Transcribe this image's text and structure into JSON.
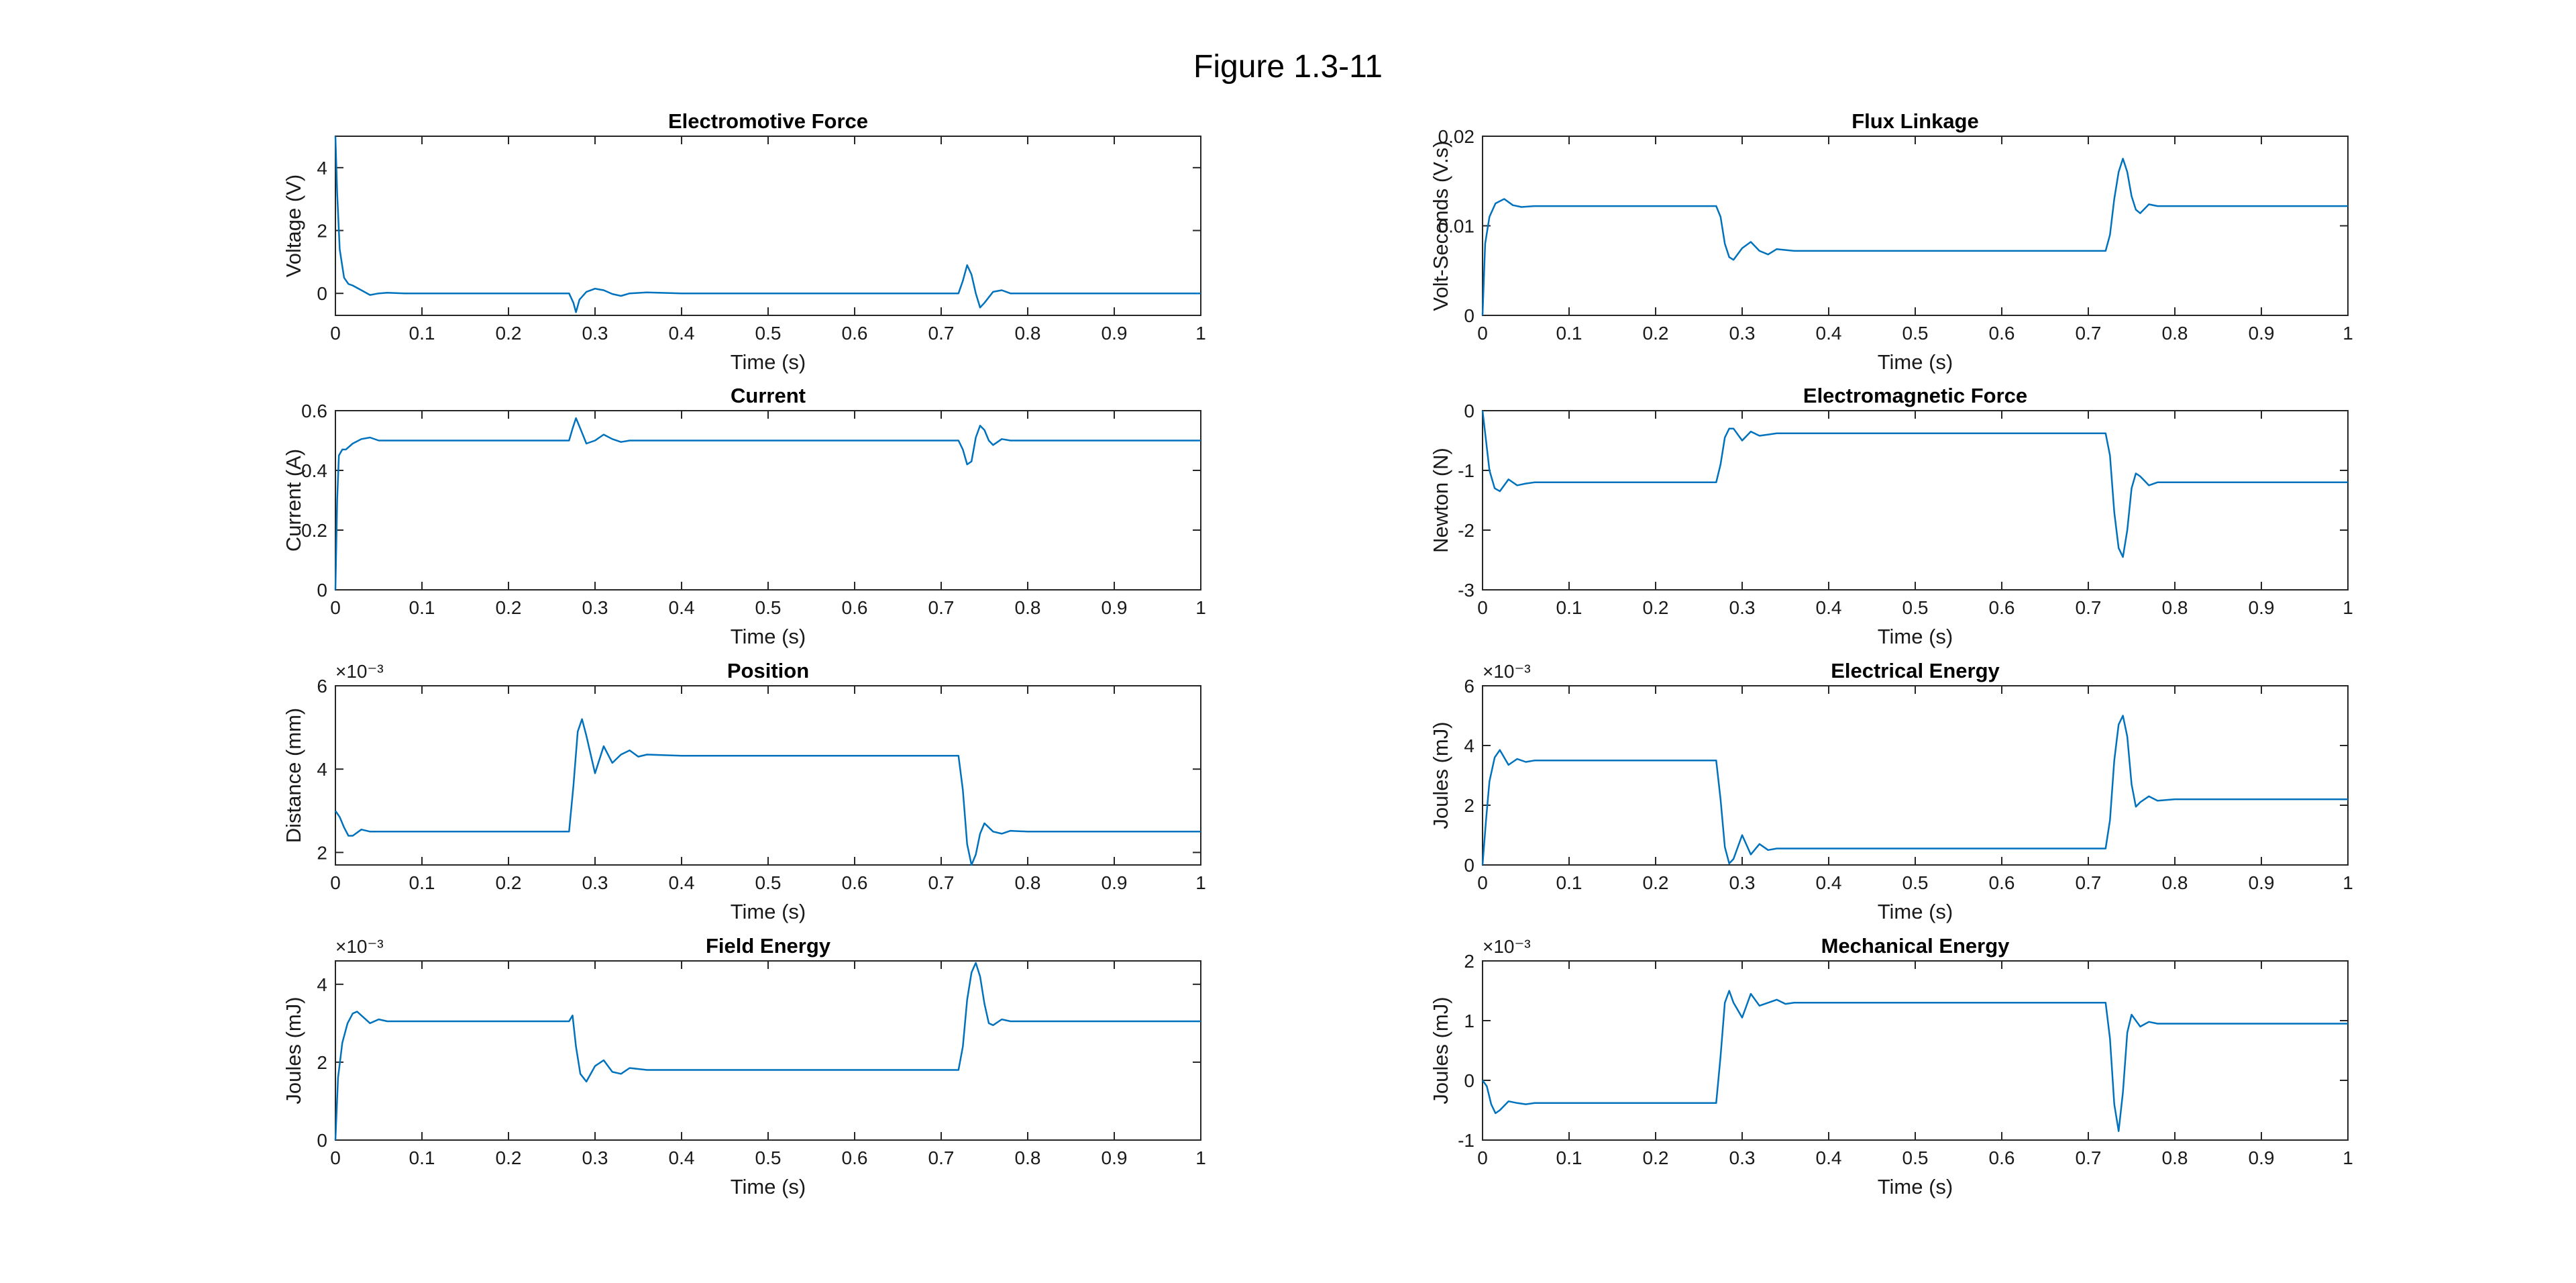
{
  "figure": {
    "title": "Figure 1.3-11",
    "line_color": "#0072BD"
  },
  "chart_data": [
    {
      "type": "line",
      "title": "Electromotive Force",
      "xlabel": "Time (s)",
      "ylabel": "Voltage (V)",
      "xlim": [
        0,
        1
      ],
      "ylim": [
        -0.7,
        5
      ],
      "xticks": [
        "0",
        "0.1",
        "0.2",
        "0.3",
        "0.4",
        "0.5",
        "0.6",
        "0.7",
        "0.8",
        "0.9",
        "1"
      ],
      "yticks": [
        "0",
        "2",
        "4"
      ],
      "y_exponent": "",
      "grid": false,
      "series": [
        {
          "x": [
            0,
            0.002,
            0.005,
            0.01,
            0.015,
            0.02,
            0.03,
            0.04,
            0.05,
            0.06,
            0.08,
            0.1,
            0.2,
            0.27,
            0.275,
            0.278,
            0.282,
            0.29,
            0.3,
            0.31,
            0.32,
            0.33,
            0.34,
            0.36,
            0.4,
            0.5,
            0.6,
            0.72,
            0.725,
            0.73,
            0.735,
            0.74,
            0.745,
            0.75,
            0.76,
            0.77,
            0.78,
            0.8,
            0.85,
            1
          ],
          "y": [
            5,
            3.2,
            1.4,
            0.5,
            0.3,
            0.25,
            0.1,
            -0.05,
            0,
            0.02,
            0,
            0,
            0,
            0,
            -0.3,
            -0.6,
            -0.2,
            0.05,
            0.15,
            0.1,
            -0.02,
            -0.08,
            0,
            0.03,
            0,
            0,
            0,
            0,
            0.4,
            0.9,
            0.6,
            0,
            -0.45,
            -0.3,
            0.05,
            0.1,
            0,
            0,
            0,
            0
          ]
        }
      ]
    },
    {
      "type": "line",
      "title": "Flux Linkage",
      "xlabel": "Time (s)",
      "ylabel": "Volt-Seconds (V.s)",
      "xlim": [
        0,
        1
      ],
      "ylim": [
        0,
        0.02
      ],
      "xticks": [
        "0",
        "0.1",
        "0.2",
        "0.3",
        "0.4",
        "0.5",
        "0.6",
        "0.7",
        "0.8",
        "0.9",
        "1"
      ],
      "yticks": [
        "0",
        "0.01",
        "0.02"
      ],
      "y_exponent": "",
      "grid": false,
      "series": [
        {
          "x": [
            0,
            0.003,
            0.008,
            0.015,
            0.025,
            0.035,
            0.045,
            0.06,
            0.08,
            0.1,
            0.2,
            0.27,
            0.275,
            0.28,
            0.285,
            0.29,
            0.3,
            0.31,
            0.32,
            0.33,
            0.34,
            0.36,
            0.4,
            0.5,
            0.6,
            0.7,
            0.72,
            0.725,
            0.73,
            0.735,
            0.74,
            0.745,
            0.75,
            0.755,
            0.76,
            0.77,
            0.78,
            0.8,
            0.85,
            1
          ],
          "y": [
            0,
            0.008,
            0.011,
            0.0125,
            0.013,
            0.0123,
            0.0121,
            0.0122,
            0.0122,
            0.0122,
            0.0122,
            0.0122,
            0.011,
            0.008,
            0.0065,
            0.0062,
            0.0075,
            0.0082,
            0.0072,
            0.0068,
            0.0074,
            0.0072,
            0.0072,
            0.0072,
            0.0072,
            0.0072,
            0.0072,
            0.009,
            0.013,
            0.016,
            0.0175,
            0.016,
            0.0133,
            0.0118,
            0.0114,
            0.0124,
            0.0122,
            0.0122,
            0.0122,
            0.0122
          ]
        }
      ]
    },
    {
      "type": "line",
      "title": "Current",
      "xlabel": "Time (s)",
      "ylabel": "Current (A)",
      "xlim": [
        0,
        1
      ],
      "ylim": [
        0,
        0.6
      ],
      "xticks": [
        "0",
        "0.1",
        "0.2",
        "0.3",
        "0.4",
        "0.5",
        "0.6",
        "0.7",
        "0.8",
        "0.9",
        "1"
      ],
      "yticks": [
        "0",
        "0.2",
        "0.4",
        "0.6"
      ],
      "y_exponent": "",
      "grid": false,
      "series": [
        {
          "x": [
            0,
            0.002,
            0.004,
            0.008,
            0.012,
            0.02,
            0.03,
            0.04,
            0.05,
            0.06,
            0.08,
            0.1,
            0.2,
            0.27,
            0.274,
            0.278,
            0.283,
            0.29,
            0.3,
            0.31,
            0.32,
            0.33,
            0.34,
            0.36,
            0.4,
            0.5,
            0.6,
            0.72,
            0.725,
            0.73,
            0.735,
            0.74,
            0.745,
            0.75,
            0.755,
            0.76,
            0.77,
            0.78,
            0.8,
            1
          ],
          "y": [
            0,
            0.3,
            0.45,
            0.47,
            0.47,
            0.49,
            0.505,
            0.51,
            0.5,
            0.5,
            0.5,
            0.5,
            0.5,
            0.5,
            0.54,
            0.575,
            0.54,
            0.49,
            0.5,
            0.52,
            0.505,
            0.495,
            0.5,
            0.5,
            0.5,
            0.5,
            0.5,
            0.5,
            0.47,
            0.42,
            0.43,
            0.51,
            0.55,
            0.535,
            0.5,
            0.485,
            0.505,
            0.5,
            0.5,
            0.5
          ]
        }
      ]
    },
    {
      "type": "line",
      "title": "Electromagnetic Force",
      "xlabel": "Time (s)",
      "ylabel": "Newton (N)",
      "xlim": [
        0,
        1
      ],
      "ylim": [
        -3,
        0
      ],
      "xticks": [
        "0",
        "0.1",
        "0.2",
        "0.3",
        "0.4",
        "0.5",
        "0.6",
        "0.7",
        "0.8",
        "0.9",
        "1"
      ],
      "yticks": [
        "-3",
        "-2",
        "-1",
        "0"
      ],
      "y_exponent": "",
      "grid": false,
      "series": [
        {
          "x": [
            0,
            0.004,
            0.008,
            0.014,
            0.02,
            0.03,
            0.04,
            0.05,
            0.06,
            0.08,
            0.1,
            0.2,
            0.27,
            0.275,
            0.28,
            0.285,
            0.29,
            0.3,
            0.31,
            0.32,
            0.33,
            0.34,
            0.36,
            0.4,
            0.5,
            0.6,
            0.7,
            0.72,
            0.725,
            0.73,
            0.735,
            0.74,
            0.745,
            0.75,
            0.755,
            0.76,
            0.77,
            0.78,
            0.8,
            1
          ],
          "y": [
            0,
            -0.5,
            -1.0,
            -1.3,
            -1.35,
            -1.15,
            -1.25,
            -1.22,
            -1.2,
            -1.2,
            -1.2,
            -1.2,
            -1.2,
            -0.9,
            -0.45,
            -0.3,
            -0.3,
            -0.5,
            -0.35,
            -0.42,
            -0.4,
            -0.38,
            -0.38,
            -0.38,
            -0.38,
            -0.38,
            -0.38,
            -0.38,
            -0.75,
            -1.7,
            -2.3,
            -2.45,
            -2.0,
            -1.3,
            -1.05,
            -1.1,
            -1.25,
            -1.2,
            -1.2,
            -1.2
          ]
        }
      ]
    },
    {
      "type": "line",
      "title": "Position",
      "xlabel": "Time (s)",
      "ylabel": "Distance (mm)",
      "xlim": [
        0,
        1
      ],
      "ylim": [
        1.7,
        6
      ],
      "xticks": [
        "0",
        "0.1",
        "0.2",
        "0.3",
        "0.4",
        "0.5",
        "0.6",
        "0.7",
        "0.8",
        "0.9",
        "1"
      ],
      "yticks": [
        "2",
        "4",
        "6"
      ],
      "y_exponent": "×10⁻³",
      "grid": false,
      "series": [
        {
          "x": [
            0,
            0.005,
            0.01,
            0.015,
            0.02,
            0.03,
            0.04,
            0.05,
            0.06,
            0.08,
            0.1,
            0.2,
            0.27,
            0.275,
            0.28,
            0.285,
            0.29,
            0.3,
            0.31,
            0.32,
            0.33,
            0.34,
            0.35,
            0.36,
            0.4,
            0.5,
            0.6,
            0.7,
            0.72,
            0.725,
            0.73,
            0.735,
            0.74,
            0.745,
            0.75,
            0.76,
            0.77,
            0.78,
            0.8,
            1
          ],
          "y": [
            3.0,
            2.85,
            2.6,
            2.4,
            2.4,
            2.55,
            2.5,
            2.5,
            2.5,
            2.5,
            2.5,
            2.5,
            2.5,
            3.6,
            4.9,
            5.2,
            4.8,
            3.9,
            4.55,
            4.15,
            4.35,
            4.45,
            4.3,
            4.35,
            4.32,
            4.32,
            4.32,
            4.32,
            4.32,
            3.5,
            2.2,
            1.65,
            1.95,
            2.45,
            2.7,
            2.5,
            2.45,
            2.52,
            2.5,
            2.5
          ]
        }
      ]
    },
    {
      "type": "line",
      "title": "Electrical Energy",
      "xlabel": "Time (s)",
      "ylabel": "Joules (mJ)",
      "xlim": [
        0,
        1
      ],
      "ylim": [
        0,
        6
      ],
      "xticks": [
        "0",
        "0.1",
        "0.2",
        "0.3",
        "0.4",
        "0.5",
        "0.6",
        "0.7",
        "0.8",
        "0.9",
        "1"
      ],
      "yticks": [
        "0",
        "2",
        "4",
        "6"
      ],
      "y_exponent": "×10⁻³",
      "grid": false,
      "series": [
        {
          "x": [
            0,
            0.004,
            0.008,
            0.014,
            0.02,
            0.03,
            0.04,
            0.05,
            0.06,
            0.08,
            0.1,
            0.2,
            0.27,
            0.275,
            0.28,
            0.285,
            0.29,
            0.3,
            0.31,
            0.32,
            0.33,
            0.34,
            0.36,
            0.4,
            0.5,
            0.6,
            0.7,
            0.72,
            0.725,
            0.73,
            0.735,
            0.74,
            0.745,
            0.75,
            0.755,
            0.76,
            0.77,
            0.78,
            0.8,
            1
          ],
          "y": [
            0,
            1.5,
            2.8,
            3.6,
            3.85,
            3.35,
            3.55,
            3.45,
            3.5,
            3.5,
            3.5,
            3.5,
            3.5,
            2.2,
            0.6,
            0.05,
            0.2,
            1.0,
            0.35,
            0.7,
            0.5,
            0.55,
            0.55,
            0.55,
            0.55,
            0.55,
            0.55,
            0.55,
            1.5,
            3.5,
            4.7,
            5.0,
            4.3,
            2.7,
            1.95,
            2.1,
            2.3,
            2.15,
            2.2,
            2.2
          ]
        }
      ]
    },
    {
      "type": "line",
      "title": "Field Energy",
      "xlabel": "Time (s)",
      "ylabel": "Joules (mJ)",
      "xlim": [
        0,
        1
      ],
      "ylim": [
        0,
        4.6
      ],
      "xticks": [
        "0",
        "0.1",
        "0.2",
        "0.3",
        "0.4",
        "0.5",
        "0.6",
        "0.7",
        "0.8",
        "0.9",
        "1"
      ],
      "yticks": [
        "0",
        "2",
        "4"
      ],
      "y_exponent": "×10⁻³",
      "grid": false,
      "series": [
        {
          "x": [
            0,
            0.003,
            0.008,
            0.014,
            0.02,
            0.025,
            0.03,
            0.04,
            0.05,
            0.06,
            0.08,
            0.1,
            0.2,
            0.27,
            0.274,
            0.278,
            0.283,
            0.29,
            0.3,
            0.31,
            0.32,
            0.33,
            0.34,
            0.36,
            0.4,
            0.5,
            0.6,
            0.7,
            0.72,
            0.725,
            0.73,
            0.735,
            0.74,
            0.745,
            0.75,
            0.755,
            0.76,
            0.77,
            0.78,
            1
          ],
          "y": [
            0,
            1.6,
            2.5,
            3.0,
            3.25,
            3.3,
            3.2,
            3.0,
            3.1,
            3.05,
            3.05,
            3.05,
            3.05,
            3.05,
            3.2,
            2.4,
            1.7,
            1.5,
            1.9,
            2.05,
            1.75,
            1.7,
            1.85,
            1.8,
            1.8,
            1.8,
            1.8,
            1.8,
            1.8,
            2.4,
            3.6,
            4.3,
            4.55,
            4.2,
            3.5,
            3.0,
            2.95,
            3.1,
            3.05,
            3.05
          ]
        }
      ]
    },
    {
      "type": "line",
      "title": "Mechanical Energy",
      "xlabel": "Time (s)",
      "ylabel": "Joules (mJ)",
      "xlim": [
        0,
        1
      ],
      "ylim": [
        -1,
        2
      ],
      "xticks": [
        "0",
        "0.1",
        "0.2",
        "0.3",
        "0.4",
        "0.5",
        "0.6",
        "0.7",
        "0.8",
        "0.9",
        "1"
      ],
      "yticks": [
        "-1",
        "0",
        "1",
        "2"
      ],
      "y_exponent": "×10⁻³",
      "grid": false,
      "series": [
        {
          "x": [
            0,
            0.005,
            0.01,
            0.015,
            0.02,
            0.03,
            0.04,
            0.05,
            0.06,
            0.08,
            0.1,
            0.2,
            0.27,
            0.275,
            0.28,
            0.285,
            0.29,
            0.3,
            0.31,
            0.32,
            0.33,
            0.34,
            0.35,
            0.36,
            0.4,
            0.5,
            0.6,
            0.7,
            0.72,
            0.725,
            0.73,
            0.735,
            0.74,
            0.745,
            0.75,
            0.76,
            0.77,
            0.78,
            0.8,
            1
          ],
          "y": [
            0,
            -0.1,
            -0.4,
            -0.55,
            -0.5,
            -0.35,
            -0.38,
            -0.4,
            -0.38,
            -0.38,
            -0.38,
            -0.38,
            -0.38,
            0.4,
            1.3,
            1.5,
            1.3,
            1.05,
            1.45,
            1.25,
            1.3,
            1.35,
            1.28,
            1.3,
            1.3,
            1.3,
            1.3,
            1.3,
            1.3,
            0.7,
            -0.4,
            -0.85,
            -0.2,
            0.8,
            1.1,
            0.9,
            0.98,
            0.95,
            0.95,
            0.95
          ]
        }
      ]
    }
  ]
}
